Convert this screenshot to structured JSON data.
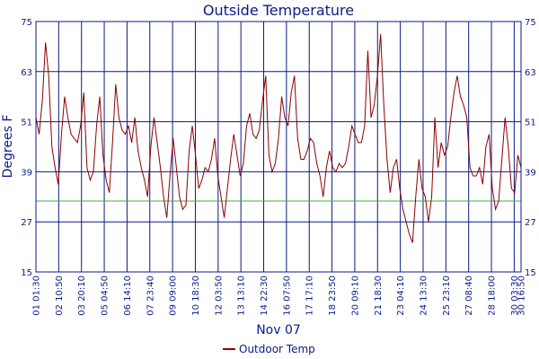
{
  "chart_data": {
    "type": "line",
    "title": "Outside Temperature",
    "ylabel": "Degrees F",
    "xlabel": "Nov 07",
    "ylim": [
      15,
      75
    ],
    "yticks": [
      15,
      27,
      39,
      51,
      63,
      75
    ],
    "x_tick_labels": [
      "01 01:30",
      "02 10:50",
      "03 20:10",
      "05 04:50",
      "06 14:10",
      "07 23:40",
      "09 09:00",
      "10 18:30",
      "12 03:50",
      "13 13:10",
      "14 22:30",
      "16 07:50",
      "17 17:10",
      "18 23:50",
      "20 09:10",
      "21 18:30",
      "23 04:10",
      "24 13:30",
      "25 23:10",
      "27 08:40",
      "28 18:00",
      "30 03:30",
      "30 16:50"
    ],
    "reference_line": {
      "value": 32,
      "color": "#3cb043"
    },
    "grid": true,
    "legend": {
      "position": "bottom-center"
    },
    "series": [
      {
        "name": "Outdoor Temp",
        "color": "#8b0000",
        "values": [
          52,
          48,
          56,
          70,
          62,
          45,
          40,
          36,
          48,
          57,
          52,
          48,
          47,
          46,
          50,
          58,
          40,
          37,
          39,
          50,
          57,
          43,
          37,
          34,
          46,
          60,
          52,
          49,
          48,
          50,
          46,
          52,
          44,
          40,
          37,
          33,
          45,
          52,
          46,
          40,
          33,
          28,
          38,
          47,
          40,
          33,
          30,
          31,
          44,
          50,
          43,
          35,
          37,
          40,
          39,
          42,
          47,
          38,
          33,
          28,
          35,
          42,
          48,
          43,
          38,
          41,
          50,
          53,
          48,
          47,
          49,
          56,
          62,
          43,
          39,
          41,
          47,
          57,
          52,
          50,
          58,
          62,
          47,
          42,
          42,
          44,
          47,
          46,
          41,
          38,
          33,
          40,
          44,
          40,
          39,
          41,
          40,
          41,
          45,
          50,
          48,
          46,
          46,
          50,
          68,
          52,
          55,
          62,
          72,
          55,
          42,
          34,
          40,
          42,
          35,
          30,
          27,
          24,
          22,
          33,
          42,
          35,
          33,
          27,
          33,
          52,
          40,
          46,
          43,
          45,
          52,
          58,
          62,
          57,
          55,
          52,
          40,
          38,
          38,
          40,
          36,
          45,
          48,
          35,
          30,
          32,
          42,
          52,
          45,
          35,
          34,
          43,
          40
        ]
      }
    ]
  }
}
